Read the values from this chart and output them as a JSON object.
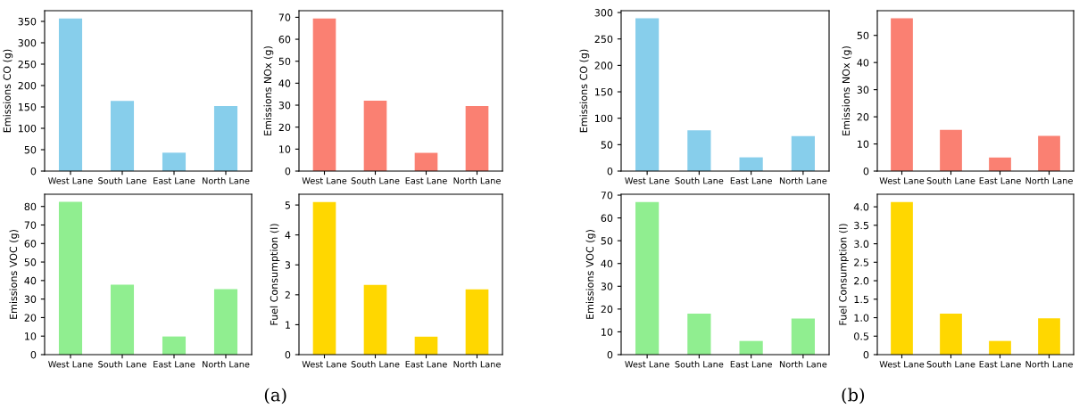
{
  "chart_data": [
    {
      "type": "bar",
      "ylabel": "Emissions CO (g)",
      "categories": [
        "West Lane",
        "South Lane",
        "East Lane",
        "North Lane"
      ],
      "values": [
        357,
        164,
        43,
        152
      ],
      "color": "#87ceeb",
      "ylim": [
        0,
        375
      ],
      "yticks": [
        0,
        50,
        100,
        150,
        200,
        250,
        300,
        350
      ]
    },
    {
      "type": "bar",
      "ylabel": "Emissions NOx (g)",
      "categories": [
        "West Lane",
        "South Lane",
        "East Lane",
        "North Lane"
      ],
      "values": [
        69.5,
        32,
        8.3,
        29.6
      ],
      "color": "#fa8072",
      "ylim": [
        0,
        73
      ],
      "yticks": [
        0,
        10,
        20,
        30,
        40,
        50,
        60,
        70
      ]
    },
    {
      "type": "bar",
      "ylabel": "Emissions VOC (g)",
      "categories": [
        "West Lane",
        "South Lane",
        "East Lane",
        "North Lane"
      ],
      "values": [
        82.5,
        37.8,
        9.8,
        35.4
      ],
      "color": "#90ee90",
      "ylim": [
        0,
        86.6
      ],
      "yticks": [
        0,
        10,
        20,
        30,
        40,
        50,
        60,
        70,
        80
      ],
      "annotations": [
        "(a)"
      ]
    },
    {
      "type": "bar",
      "ylabel": "Fuel Consumption (l)",
      "categories": [
        "West Lane",
        "South Lane",
        "East Lane",
        "North Lane"
      ],
      "values": [
        5.1,
        2.33,
        0.6,
        2.18
      ],
      "color": "#ffd700",
      "ylim": [
        0,
        5.36
      ],
      "yticks": [
        0,
        1,
        2,
        3,
        4,
        5
      ]
    },
    {
      "type": "bar",
      "ylabel": "Emissions CO (g)",
      "categories": [
        "West Lane",
        "South Lane",
        "East Lane",
        "North Lane"
      ],
      "values": [
        289,
        77,
        26,
        66
      ],
      "color": "#87ceeb",
      "ylim": [
        0,
        303.5
      ],
      "yticks": [
        0,
        50,
        100,
        150,
        200,
        250,
        300
      ]
    },
    {
      "type": "bar",
      "ylabel": "Emissions NOx (g)",
      "categories": [
        "West Lane",
        "South Lane",
        "East Lane",
        "North Lane"
      ],
      "values": [
        56.3,
        15.2,
        5,
        13
      ],
      "color": "#fa8072",
      "ylim": [
        0,
        59.1
      ],
      "yticks": [
        0,
        10,
        20,
        30,
        40,
        50
      ]
    },
    {
      "type": "bar",
      "ylabel": "Emissions VOC (g)",
      "categories": [
        "West Lane",
        "South Lane",
        "East Lane",
        "North Lane"
      ],
      "values": [
        67,
        18,
        6,
        15.8
      ],
      "color": "#90ee90",
      "ylim": [
        0,
        70.4
      ],
      "yticks": [
        0,
        10,
        20,
        30,
        40,
        50,
        60,
        70
      ],
      "annotations": [
        "(b)"
      ]
    },
    {
      "type": "bar",
      "ylabel": "Fuel Consumption (l)",
      "categories": [
        "West Lane",
        "South Lane",
        "East Lane",
        "North Lane"
      ],
      "values": [
        4.13,
        1.11,
        0.37,
        0.98
      ],
      "color": "#ffd700",
      "ylim": [
        0,
        4.34
      ],
      "yticks": [
        0,
        {
          "value": 0.5,
          "label": "0.5"
        },
        {
          "value": 1,
          "label": "1.0"
        },
        {
          "value": 1.5,
          "label": "1.5"
        },
        {
          "value": 2,
          "label": "2.0"
        },
        {
          "value": 2.5,
          "label": "2.5"
        },
        {
          "value": 3,
          "label": "3.0"
        },
        {
          "value": 3.5,
          "label": "3.5"
        },
        {
          "value": 4,
          "label": "4.0"
        }
      ]
    }
  ]
}
